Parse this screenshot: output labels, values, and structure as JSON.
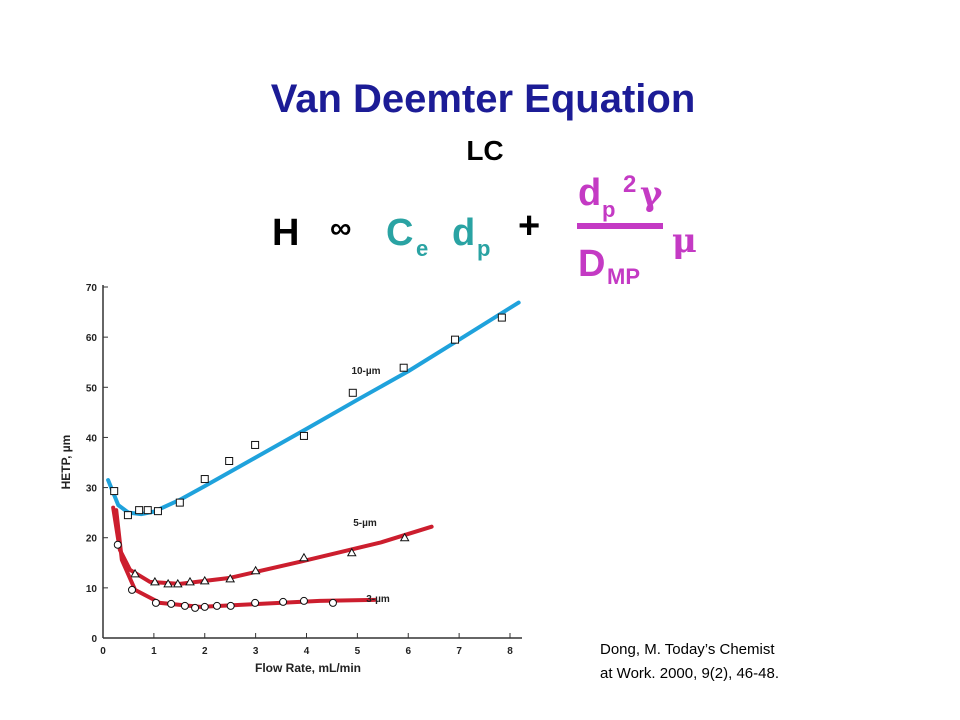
{
  "header": {
    "title": "Van Deemter Equation",
    "subtitle": "LC"
  },
  "equation": {
    "lhs": "H",
    "relation": "∞",
    "term1": {
      "base1": "C",
      "sub1": "e",
      "base2": "d",
      "sub2": "p"
    },
    "plus": "+",
    "numerator": {
      "base": "d",
      "sub": "p",
      "sup": "2",
      "tail": "γ"
    },
    "denominator": {
      "base": "D",
      "sub": "MP"
    },
    "factor": "μ"
  },
  "citation": [
    "Dong, M.  Today’s Chemist",
    "at Work. 2000, 9(2), 46-48."
  ],
  "chart_data": {
    "type": "scatter",
    "x_label": "Flow Rate, mL/min",
    "y_label": "HETP, µm",
    "xlim": [
      0,
      8
    ],
    "xticks": [
      0,
      1,
      2,
      3,
      4,
      5,
      6,
      7,
      8
    ],
    "ylim": [
      0,
      70
    ],
    "yticks": [
      0,
      10,
      20,
      30,
      40,
      50,
      60,
      70
    ],
    "series": [
      {
        "name": "10-µm",
        "marker": "square",
        "color": "#1fa2dc",
        "x": [
          0.22,
          0.49,
          0.71,
          0.88,
          1.08,
          1.51,
          2.0,
          2.48,
          2.99,
          3.95,
          4.91,
          5.91,
          6.92,
          7.84
        ],
        "values": [
          29.3,
          24.5,
          25.5,
          25.5,
          25.3,
          27,
          31.7,
          35.3,
          38.5,
          40.3,
          48.9,
          53.9,
          59.5,
          63.9
        ],
        "curve": {
          "x": [
            0.1,
            0.3,
            0.5,
            0.75,
            1.0,
            1.5,
            2,
            3,
            4,
            5,
            6,
            7,
            8.17
          ],
          "values": [
            31.5,
            26.5,
            25,
            24.7,
            25.2,
            27.5,
            30.3,
            36,
            41.7,
            47.5,
            53.2,
            59.5,
            66.9
          ]
        }
      },
      {
        "name": "5-µm",
        "marker": "triangle",
        "color": "#cc1e2e",
        "x": [
          0.63,
          1.02,
          1.28,
          1.47,
          1.71,
          2.0,
          2.5,
          3.0,
          3.95,
          4.89,
          5.93
        ],
        "values": [
          12.8,
          11.2,
          10.8,
          10.8,
          11.2,
          11.4,
          11.8,
          13.4,
          16,
          17,
          20
        ],
        "curve": {
          "x": [
            0.2,
            0.33,
            0.53,
            0.92,
            1.51,
            2.5,
            3.87,
            5.44,
            6.46
          ],
          "values": [
            26,
            17.6,
            13.6,
            11.2,
            10.8,
            12,
            15.2,
            19,
            22.2
          ]
        }
      },
      {
        "name": "3-µm",
        "marker": "circle",
        "color": "#cc1e2e",
        "x": [
          0.29,
          0.57,
          1.04,
          1.34,
          1.61,
          1.81,
          2.0,
          2.24,
          2.51,
          2.99,
          3.54,
          3.95,
          4.52
        ],
        "values": [
          18.6,
          9.6,
          7.0,
          6.8,
          6.4,
          6.0,
          6.2,
          6.4,
          6.4,
          7.0,
          7.2,
          7.4,
          7.0
        ],
        "curve": {
          "x": [
            0.26,
            0.37,
            0.63,
            1.12,
            1.91,
            3.08,
            4.26,
            5.34
          ],
          "values": [
            25.5,
            15.6,
            9.6,
            7.0,
            6.2,
            6.8,
            7.4,
            7.6
          ]
        }
      }
    ]
  }
}
